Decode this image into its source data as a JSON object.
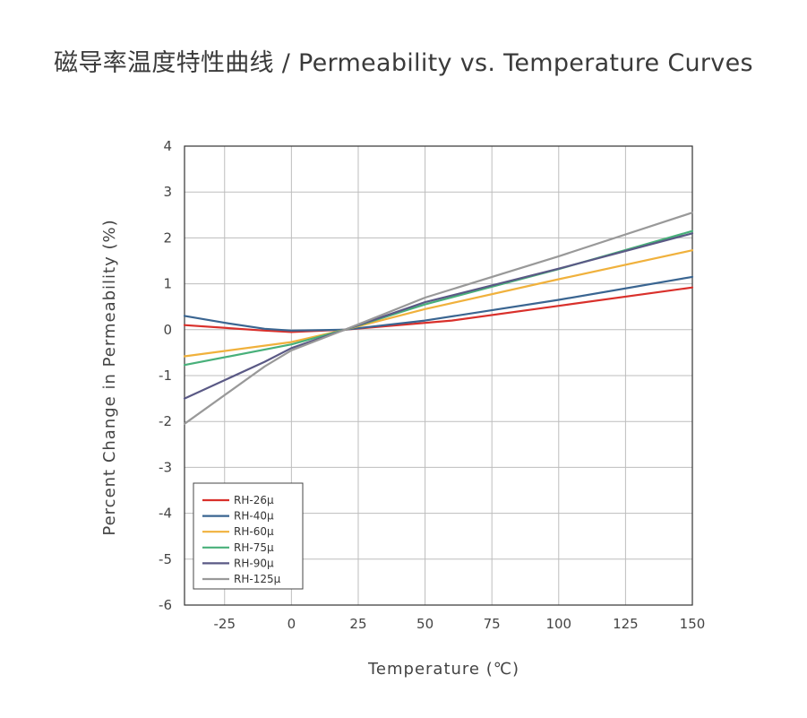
{
  "page": {
    "title": "磁导率温度特性曲线 / Permeability vs. Temperature Curves"
  },
  "chart_data": {
    "type": "line",
    "title": "磁导率温度特性曲线 / Permeability vs. Temperature Curves",
    "xlabel": "Temperature (℃)",
    "ylabel": "Percent Change in Permeability (%)",
    "xlim": [
      -40,
      150
    ],
    "ylim": [
      -6,
      4
    ],
    "xticks": [
      -25,
      0,
      25,
      50,
      75,
      100,
      125,
      150
    ],
    "xtick_labels": [
      "-25",
      "0",
      "25",
      "50",
      "75",
      "100",
      "125",
      "150"
    ],
    "yticks": [
      4,
      3,
      2,
      1,
      0,
      -1,
      -2,
      -3,
      -4,
      -5,
      -6
    ],
    "ytick_labels": [
      "4",
      "3",
      "2",
      "1",
      "0",
      "-1",
      "-2",
      "-3",
      "-4",
      "-5",
      "-6"
    ],
    "grid": true,
    "legend_position": "bottom-left",
    "series": [
      {
        "name": "RH-26μ",
        "color": "#d9302b",
        "points": [
          [
            -40,
            0.1
          ],
          [
            -10,
            -0.02
          ],
          [
            0,
            -0.05
          ],
          [
            20,
            0.0
          ],
          [
            60,
            0.2
          ],
          [
            100,
            0.52
          ],
          [
            150,
            0.92
          ]
        ]
      },
      {
        "name": "RH-40μ",
        "color": "#3a6591",
        "points": [
          [
            -40,
            0.3
          ],
          [
            -25,
            0.15
          ],
          [
            -10,
            0.02
          ],
          [
            0,
            -0.02
          ],
          [
            20,
            0.0
          ],
          [
            50,
            0.2
          ],
          [
            100,
            0.65
          ],
          [
            150,
            1.15
          ]
        ]
      },
      {
        "name": "RH-60μ",
        "color": "#f0b13c",
        "points": [
          [
            -40,
            -0.58
          ],
          [
            0,
            -0.27
          ],
          [
            20,
            0.0
          ],
          [
            50,
            0.45
          ],
          [
            100,
            1.1
          ],
          [
            150,
            1.73
          ]
        ]
      },
      {
        "name": "RH-75μ",
        "color": "#48b07a",
        "points": [
          [
            -40,
            -0.77
          ],
          [
            0,
            -0.32
          ],
          [
            20,
            0.0
          ],
          [
            50,
            0.55
          ],
          [
            100,
            1.32
          ],
          [
            150,
            2.15
          ]
        ]
      },
      {
        "name": "RH-90μ",
        "color": "#5a5985",
        "points": [
          [
            -40,
            -1.5
          ],
          [
            -10,
            -0.7
          ],
          [
            0,
            -0.4
          ],
          [
            20,
            0.0
          ],
          [
            50,
            0.6
          ],
          [
            100,
            1.33
          ],
          [
            150,
            2.1
          ]
        ]
      },
      {
        "name": "RH-125μ",
        "color": "#999999",
        "points": [
          [
            -40,
            -2.05
          ],
          [
            -10,
            -0.8
          ],
          [
            0,
            -0.45
          ],
          [
            20,
            0.0
          ],
          [
            50,
            0.7
          ],
          [
            100,
            1.6
          ],
          [
            150,
            2.55
          ]
        ]
      }
    ]
  }
}
